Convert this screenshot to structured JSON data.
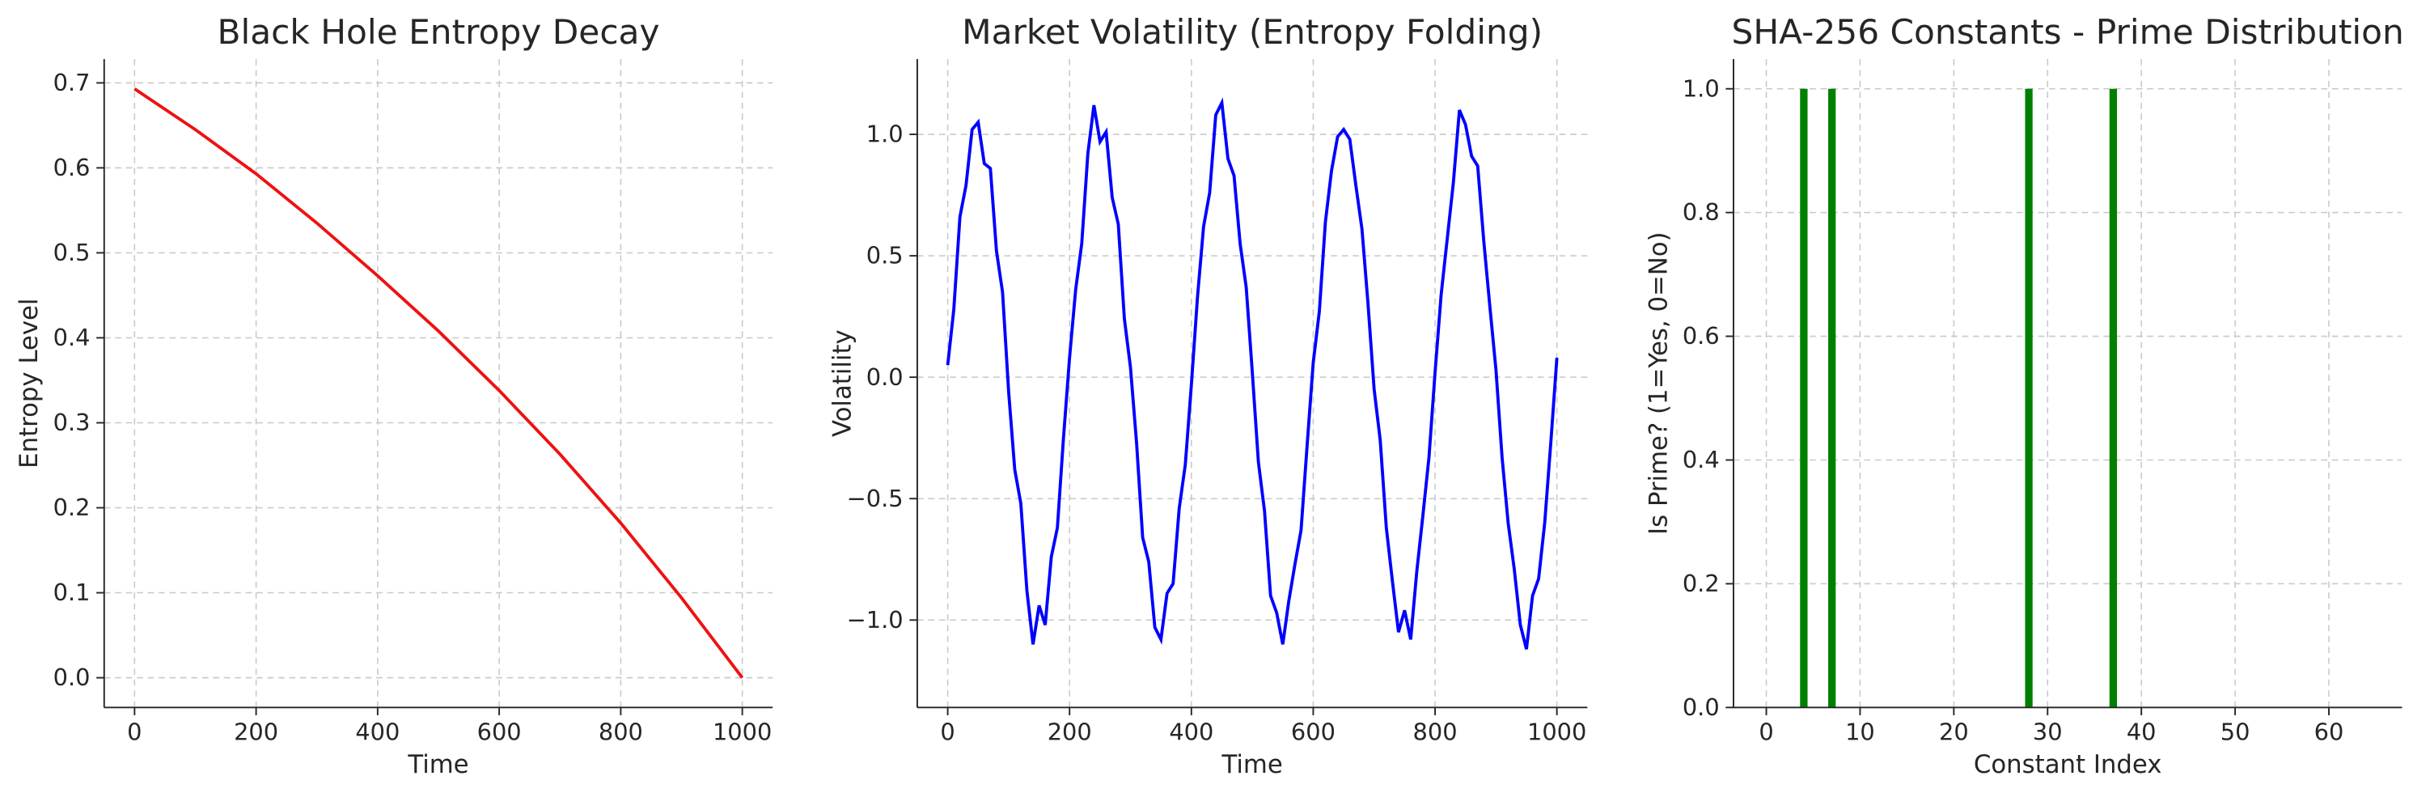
{
  "chart_data": [
    {
      "type": "line",
      "title": "Black Hole Entropy Decay",
      "x_label": "Time",
      "y_label": "Entropy Level",
      "color": "#ee1111",
      "x": [
        0,
        100,
        200,
        300,
        400,
        500,
        600,
        700,
        800,
        900,
        1000
      ],
      "values": [
        0.693,
        0.645,
        0.593,
        0.535,
        0.473,
        0.408,
        0.338,
        0.263,
        0.182,
        0.094,
        0.0
      ],
      "xlim": [
        -50,
        1050
      ],
      "xticks": [
        0,
        200,
        400,
        600,
        800,
        1000
      ],
      "ylim": [
        -0.035,
        0.728
      ],
      "yticks": [
        {
          "value": 0.0,
          "label": "0.0"
        },
        0.1,
        0.2,
        0.3,
        0.4,
        0.5,
        0.6,
        0.7
      ],
      "grid": true
    },
    {
      "type": "line",
      "title": "Market Volatility (Entropy Folding)",
      "x_label": "Time",
      "y_label": "Volatility",
      "color": "#0000ff",
      "x": [
        0,
        10,
        20,
        30,
        40,
        50,
        60,
        70,
        80,
        90,
        100,
        110,
        120,
        130,
        140,
        150,
        160,
        170,
        180,
        190,
        200,
        210,
        220,
        230,
        240,
        250,
        260,
        270,
        280,
        290,
        300,
        310,
        320,
        330,
        340,
        350,
        360,
        370,
        380,
        390,
        400,
        410,
        420,
        430,
        440,
        450,
        460,
        470,
        480,
        490,
        500,
        510,
        520,
        530,
        540,
        550,
        560,
        570,
        580,
        590,
        600,
        610,
        620,
        630,
        640,
        650,
        660,
        670,
        680,
        690,
        700,
        710,
        720,
        730,
        740,
        750,
        760,
        770,
        780,
        790,
        800,
        810,
        820,
        830,
        840,
        850,
        860,
        870,
        880,
        890,
        900,
        910,
        920,
        930,
        940,
        950,
        960,
        970,
        980,
        990,
        1000
      ],
      "values": [
        0.05,
        0.28,
        0.66,
        0.79,
        1.02,
        1.05,
        0.88,
        0.86,
        0.52,
        0.35,
        -0.06,
        -0.38,
        -0.52,
        -0.88,
        -1.1,
        -0.94,
        -1.02,
        -0.74,
        -0.62,
        -0.25,
        0.08,
        0.36,
        0.55,
        0.92,
        1.12,
        0.97,
        1.01,
        0.74,
        0.63,
        0.24,
        0.04,
        -0.27,
        -0.66,
        -0.76,
        -1.03,
        -1.08,
        -0.89,
        -0.85,
        -0.54,
        -0.36,
        -0.03,
        0.33,
        0.62,
        0.76,
        1.08,
        1.13,
        0.9,
        0.83,
        0.55,
        0.37,
        0.02,
        -0.35,
        -0.55,
        -0.9,
        -0.97,
        -1.1,
        -0.92,
        -0.77,
        -0.63,
        -0.28,
        0.06,
        0.27,
        0.64,
        0.85,
        0.99,
        1.02,
        0.98,
        0.79,
        0.61,
        0.3,
        -0.05,
        -0.26,
        -0.62,
        -0.84,
        -1.05,
        -0.96,
        -1.08,
        -0.8,
        -0.57,
        -0.33,
        0.02,
        0.34,
        0.57,
        0.8,
        1.1,
        1.04,
        0.91,
        0.87,
        0.56,
        0.29,
        0.03,
        -0.33,
        -0.6,
        -0.79,
        -1.02,
        -1.12,
        -0.9,
        -0.83,
        -0.6,
        -0.27,
        0.08
      ],
      "xlim": [
        -50,
        1050
      ],
      "xticks": [
        0,
        200,
        400,
        600,
        800,
        1000
      ],
      "ylim": [
        -1.36,
        1.31
      ],
      "yticks": [
        {
          "value": -1.0,
          "label": "−1.0"
        },
        {
          "value": -0.5,
          "label": "−0.5"
        },
        {
          "value": 0.0,
          "label": "0.0"
        },
        0.5,
        {
          "value": 1.0,
          "label": "1.0"
        }
      ],
      "grid": true
    },
    {
      "type": "bar",
      "title": "SHA-256 Constants - Prime Distribution",
      "x_label": "Constant Index",
      "y_label": "Is Prime? (1=Yes, 0=No)",
      "color": "#008000",
      "x": [
        0,
        1,
        2,
        3,
        4,
        5,
        6,
        7,
        8,
        9,
        10,
        11,
        12,
        13,
        14,
        15,
        16,
        17,
        18,
        19,
        20,
        21,
        22,
        23,
        24,
        25,
        26,
        27,
        28,
        29,
        30,
        31,
        32,
        33,
        34,
        35,
        36,
        37,
        38,
        39,
        40,
        41,
        42,
        43,
        44,
        45,
        46,
        47,
        48,
        49,
        50,
        51,
        52,
        53,
        54,
        55,
        56,
        57,
        58,
        59,
        60,
        61,
        62,
        63
      ],
      "values": [
        0,
        0,
        0,
        0,
        1,
        0,
        0,
        1,
        0,
        0,
        0,
        0,
        0,
        0,
        0,
        0,
        0,
        0,
        0,
        0,
        0,
        0,
        0,
        0,
        0,
        0,
        0,
        0,
        1,
        0,
        0,
        0,
        0,
        0,
        0,
        0,
        0,
        1,
        0,
        0,
        0,
        0,
        0,
        0,
        0,
        0,
        0,
        0,
        0,
        0,
        0,
        0,
        0,
        0,
        0,
        0,
        0,
        0,
        0,
        0,
        0,
        0,
        0,
        0
      ],
      "xlim": [
        -3.5,
        67.8
      ],
      "xticks": [
        0,
        10,
        20,
        30,
        40,
        50,
        60
      ],
      "ylim": [
        0,
        1.048
      ],
      "yticks": [
        {
          "value": 0.0,
          "label": "0.0"
        },
        0.2,
        0.4,
        0.6,
        0.8,
        {
          "value": 1.0,
          "label": "1.0"
        }
      ],
      "grid": true
    }
  ]
}
